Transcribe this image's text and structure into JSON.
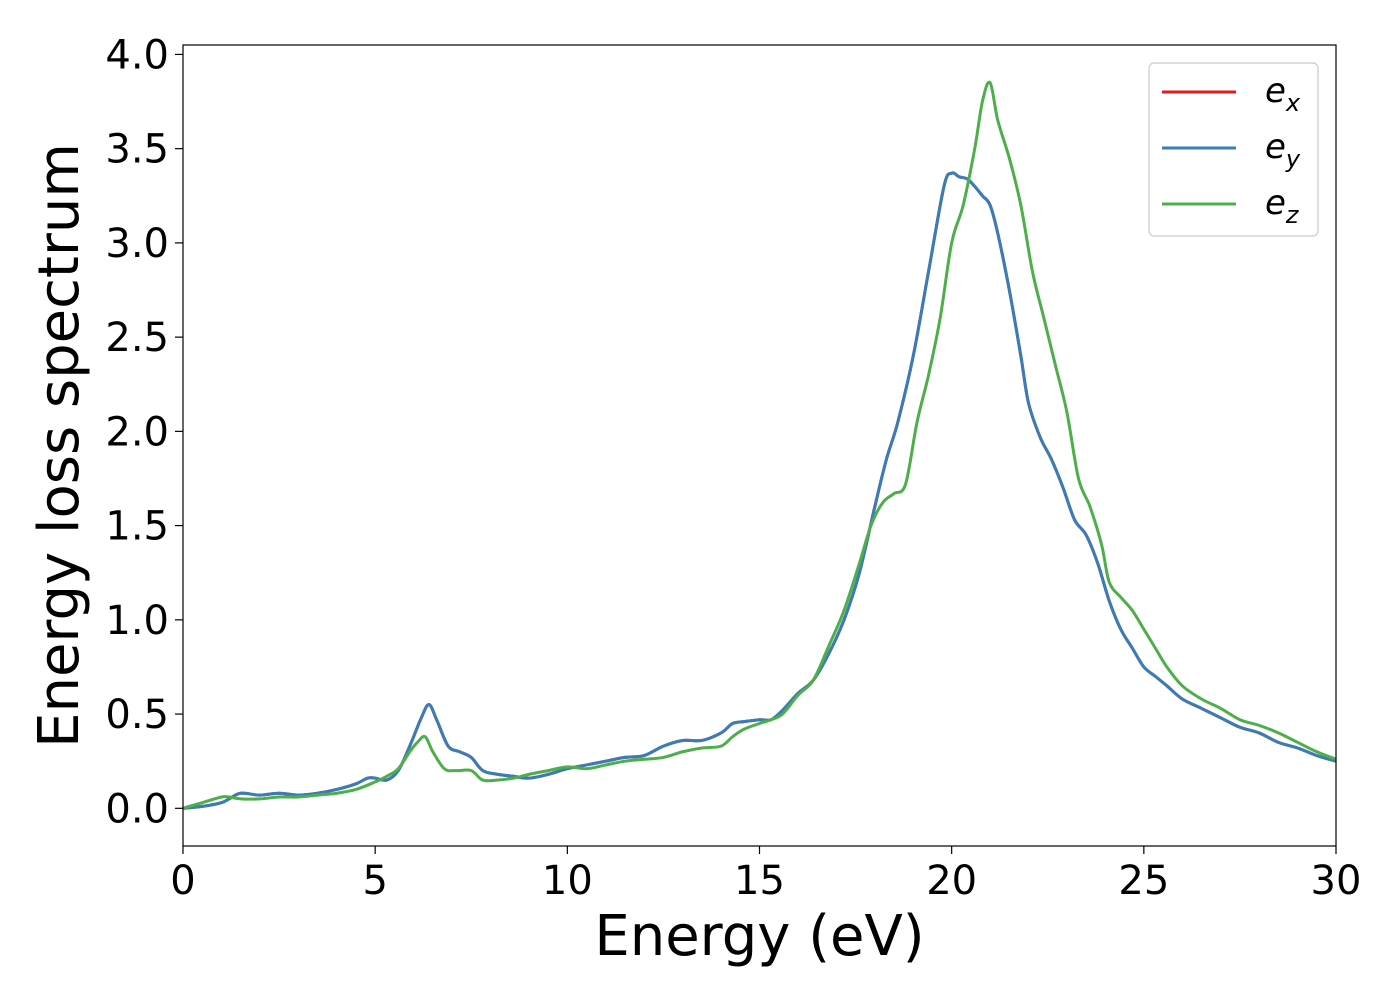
{
  "chart_data": {
    "type": "line",
    "xlabel": "Energy (eV)",
    "ylabel": "Energy loss spectrum",
    "xlim": [
      0,
      30
    ],
    "ylim": [
      -0.2,
      4.05
    ],
    "xticks": [
      0,
      5,
      10,
      15,
      20,
      25,
      30
    ],
    "yticks": [
      0.0,
      0.5,
      1.0,
      1.5,
      2.0,
      2.5,
      3.0,
      3.5,
      4.0
    ],
    "xtick_labels": [
      "0",
      "5",
      "10",
      "15",
      "20",
      "25",
      "30"
    ],
    "ytick_labels": [
      "0.0",
      "0.5",
      "1.0",
      "1.5",
      "2.0",
      "2.5",
      "3.0",
      "3.5",
      "4.0"
    ],
    "grid": false,
    "legend_position": "top-right",
    "series": [
      {
        "name": "e_x",
        "label_base": "e",
        "label_sub": "x",
        "color": "#e41a1c",
        "x": [
          0,
          0.5,
          1.0,
          1.2,
          1.5,
          2.0,
          2.5,
          3.0,
          3.5,
          4.0,
          4.5,
          4.8,
          5.0,
          5.3,
          5.6,
          5.9,
          6.2,
          6.4,
          6.6,
          6.9,
          7.2,
          7.5,
          7.8,
          8.2,
          8.6,
          9.0,
          9.5,
          10.0,
          10.5,
          11.0,
          11.5,
          12.0,
          12.5,
          13.0,
          13.5,
          14.0,
          14.3,
          14.6,
          15.0,
          15.3,
          15.6,
          16.0,
          16.4,
          16.8,
          17.2,
          17.6,
          18.0,
          18.3,
          18.6,
          19.0,
          19.4,
          19.8,
          20.0,
          20.2,
          20.4,
          20.6,
          20.8,
          21.0,
          21.2,
          21.5,
          21.8,
          22.0,
          22.3,
          22.6,
          22.9,
          23.2,
          23.5,
          23.8,
          24.1,
          24.4,
          24.7,
          25.0,
          25.3,
          25.6,
          26.0,
          26.5,
          27.0,
          27.5,
          28.0,
          28.5,
          29.0,
          29.5,
          30.0
        ],
        "y": [
          0.0,
          0.01,
          0.03,
          0.05,
          0.08,
          0.07,
          0.08,
          0.07,
          0.08,
          0.1,
          0.13,
          0.16,
          0.16,
          0.15,
          0.2,
          0.33,
          0.48,
          0.55,
          0.47,
          0.33,
          0.3,
          0.27,
          0.2,
          0.18,
          0.17,
          0.16,
          0.18,
          0.21,
          0.23,
          0.25,
          0.27,
          0.28,
          0.33,
          0.36,
          0.36,
          0.4,
          0.45,
          0.46,
          0.47,
          0.47,
          0.52,
          0.61,
          0.68,
          0.82,
          1.0,
          1.25,
          1.6,
          1.85,
          2.05,
          2.4,
          2.85,
          3.3,
          3.37,
          3.35,
          3.34,
          3.3,
          3.25,
          3.2,
          3.05,
          2.75,
          2.4,
          2.15,
          1.97,
          1.85,
          1.7,
          1.53,
          1.45,
          1.3,
          1.1,
          0.95,
          0.85,
          0.75,
          0.7,
          0.65,
          0.58,
          0.53,
          0.48,
          0.43,
          0.4,
          0.35,
          0.32,
          0.28,
          0.25
        ]
      },
      {
        "name": "e_y",
        "label_base": "e",
        "label_sub": "y",
        "color": "#377eb8",
        "x": [
          0,
          0.5,
          1.0,
          1.2,
          1.5,
          2.0,
          2.5,
          3.0,
          3.5,
          4.0,
          4.5,
          4.8,
          5.0,
          5.3,
          5.6,
          5.9,
          6.2,
          6.4,
          6.6,
          6.9,
          7.2,
          7.5,
          7.8,
          8.2,
          8.6,
          9.0,
          9.5,
          10.0,
          10.5,
          11.0,
          11.5,
          12.0,
          12.5,
          13.0,
          13.5,
          14.0,
          14.3,
          14.6,
          15.0,
          15.3,
          15.6,
          16.0,
          16.4,
          16.8,
          17.2,
          17.6,
          18.0,
          18.3,
          18.6,
          19.0,
          19.4,
          19.8,
          20.0,
          20.2,
          20.4,
          20.6,
          20.8,
          21.0,
          21.2,
          21.5,
          21.8,
          22.0,
          22.3,
          22.6,
          22.9,
          23.2,
          23.5,
          23.8,
          24.1,
          24.4,
          24.7,
          25.0,
          25.3,
          25.6,
          26.0,
          26.5,
          27.0,
          27.5,
          28.0,
          28.5,
          29.0,
          29.5,
          30.0
        ],
        "y": [
          0.0,
          0.01,
          0.03,
          0.05,
          0.08,
          0.07,
          0.08,
          0.07,
          0.08,
          0.1,
          0.13,
          0.16,
          0.16,
          0.15,
          0.2,
          0.33,
          0.48,
          0.55,
          0.47,
          0.33,
          0.3,
          0.27,
          0.2,
          0.18,
          0.17,
          0.16,
          0.18,
          0.21,
          0.23,
          0.25,
          0.27,
          0.28,
          0.33,
          0.36,
          0.36,
          0.4,
          0.45,
          0.46,
          0.47,
          0.47,
          0.52,
          0.61,
          0.68,
          0.82,
          1.0,
          1.25,
          1.6,
          1.85,
          2.05,
          2.4,
          2.85,
          3.3,
          3.37,
          3.35,
          3.34,
          3.3,
          3.25,
          3.2,
          3.05,
          2.75,
          2.4,
          2.15,
          1.97,
          1.85,
          1.7,
          1.53,
          1.45,
          1.3,
          1.1,
          0.95,
          0.85,
          0.75,
          0.7,
          0.65,
          0.58,
          0.53,
          0.48,
          0.43,
          0.4,
          0.35,
          0.32,
          0.28,
          0.25
        ]
      },
      {
        "name": "e_z",
        "label_base": "e",
        "label_sub": "z",
        "color": "#4daf4a",
        "x": [
          0,
          0.5,
          1.0,
          1.2,
          1.5,
          2.0,
          2.5,
          3.0,
          3.5,
          4.0,
          4.5,
          5.0,
          5.3,
          5.6,
          5.9,
          6.1,
          6.3,
          6.5,
          6.8,
          7.1,
          7.5,
          7.8,
          8.2,
          8.6,
          9.0,
          9.5,
          10.0,
          10.5,
          11.0,
          11.5,
          12.0,
          12.5,
          13.0,
          13.5,
          14.0,
          14.3,
          14.6,
          15.0,
          15.3,
          15.6,
          16.0,
          16.4,
          16.8,
          17.2,
          17.6,
          17.9,
          18.2,
          18.5,
          18.8,
          19.1,
          19.4,
          19.7,
          20.0,
          20.3,
          20.6,
          20.8,
          21.0,
          21.2,
          21.5,
          21.8,
          22.1,
          22.4,
          22.7,
          23.0,
          23.3,
          23.6,
          23.9,
          24.1,
          24.4,
          24.7,
          25.0,
          25.3,
          25.6,
          26.0,
          26.5,
          27.0,
          27.5,
          28.0,
          28.5,
          29.0,
          29.5,
          30.0
        ],
        "y": [
          0.0,
          0.03,
          0.06,
          0.06,
          0.05,
          0.05,
          0.06,
          0.06,
          0.07,
          0.08,
          0.1,
          0.14,
          0.17,
          0.21,
          0.3,
          0.35,
          0.38,
          0.3,
          0.21,
          0.2,
          0.2,
          0.15,
          0.15,
          0.16,
          0.18,
          0.2,
          0.22,
          0.21,
          0.23,
          0.25,
          0.26,
          0.27,
          0.3,
          0.32,
          0.33,
          0.38,
          0.42,
          0.45,
          0.47,
          0.5,
          0.6,
          0.68,
          0.86,
          1.05,
          1.3,
          1.5,
          1.62,
          1.67,
          1.72,
          2.05,
          2.3,
          2.6,
          3.0,
          3.2,
          3.5,
          3.75,
          3.85,
          3.65,
          3.45,
          3.2,
          2.85,
          2.6,
          2.35,
          2.1,
          1.75,
          1.6,
          1.4,
          1.2,
          1.12,
          1.05,
          0.95,
          0.85,
          0.75,
          0.65,
          0.58,
          0.53,
          0.47,
          0.44,
          0.4,
          0.35,
          0.3,
          0.26
        ]
      }
    ]
  }
}
